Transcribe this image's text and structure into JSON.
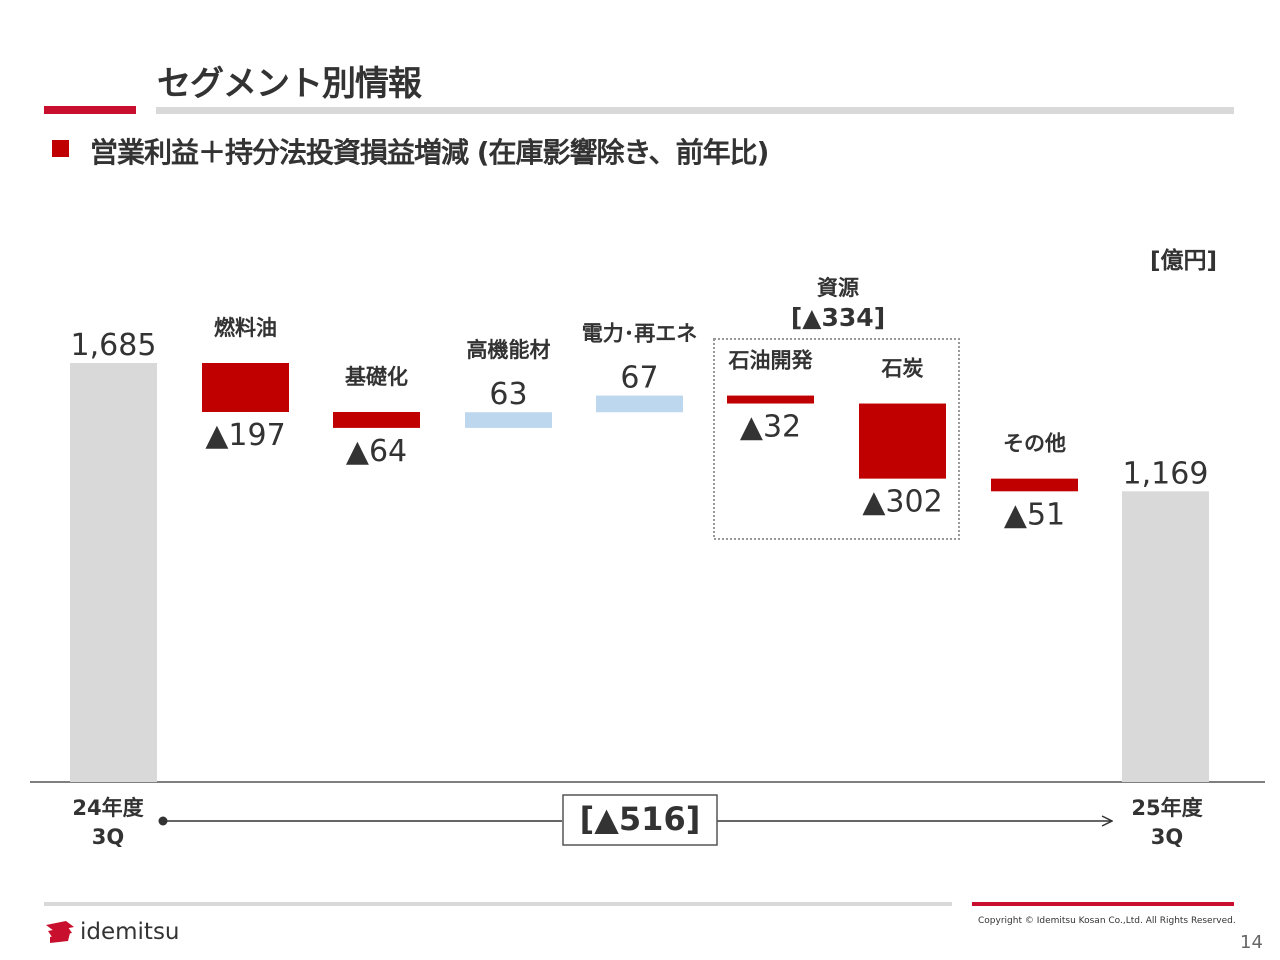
{
  "header": {
    "title": "セグメント別情報",
    "subtitle": "営業利益＋持分法投資損益増減 (在庫影響除き、前年比)"
  },
  "unit": "[億円]",
  "chart_data": {
    "type": "waterfall",
    "start": {
      "label_line1": "24年度",
      "label_line2": "3Q",
      "value": 1685,
      "value_label": "1,685"
    },
    "end": {
      "label_line1": "25年度",
      "label_line2": "3Q",
      "value": 1169,
      "value_label": "1,169"
    },
    "steps": [
      {
        "label": "燃料油",
        "delta": -197,
        "value_label": "▲197"
      },
      {
        "label": "基礎化",
        "delta": -64,
        "value_label": "▲64"
      },
      {
        "label": "高機能材",
        "delta": 63,
        "value_label": "63"
      },
      {
        "label": "電力･再エネ",
        "delta": 67,
        "value_label": "67"
      },
      {
        "label": "石油開発",
        "delta": -32,
        "value_label": "▲32"
      },
      {
        "label": "石炭",
        "delta": -302,
        "value_label": "▲302"
      },
      {
        "label": "その他",
        "delta": -51,
        "value_label": "▲51"
      }
    ],
    "group": {
      "title": "資源",
      "total_label": "[▲334]",
      "members": [
        "石油開発",
        "石炭"
      ]
    },
    "total_change_label": "[▲516]",
    "colors": {
      "start_end": "#d9d9d9",
      "decrease": "#c00000",
      "increase": "#bdd7ee"
    }
  },
  "footer": {
    "logo_text": "idemitsu",
    "copyright": "Copyright © Idemitsu Kosan Co.,Ltd.  All Rights Reserved.",
    "page_number": "14"
  }
}
